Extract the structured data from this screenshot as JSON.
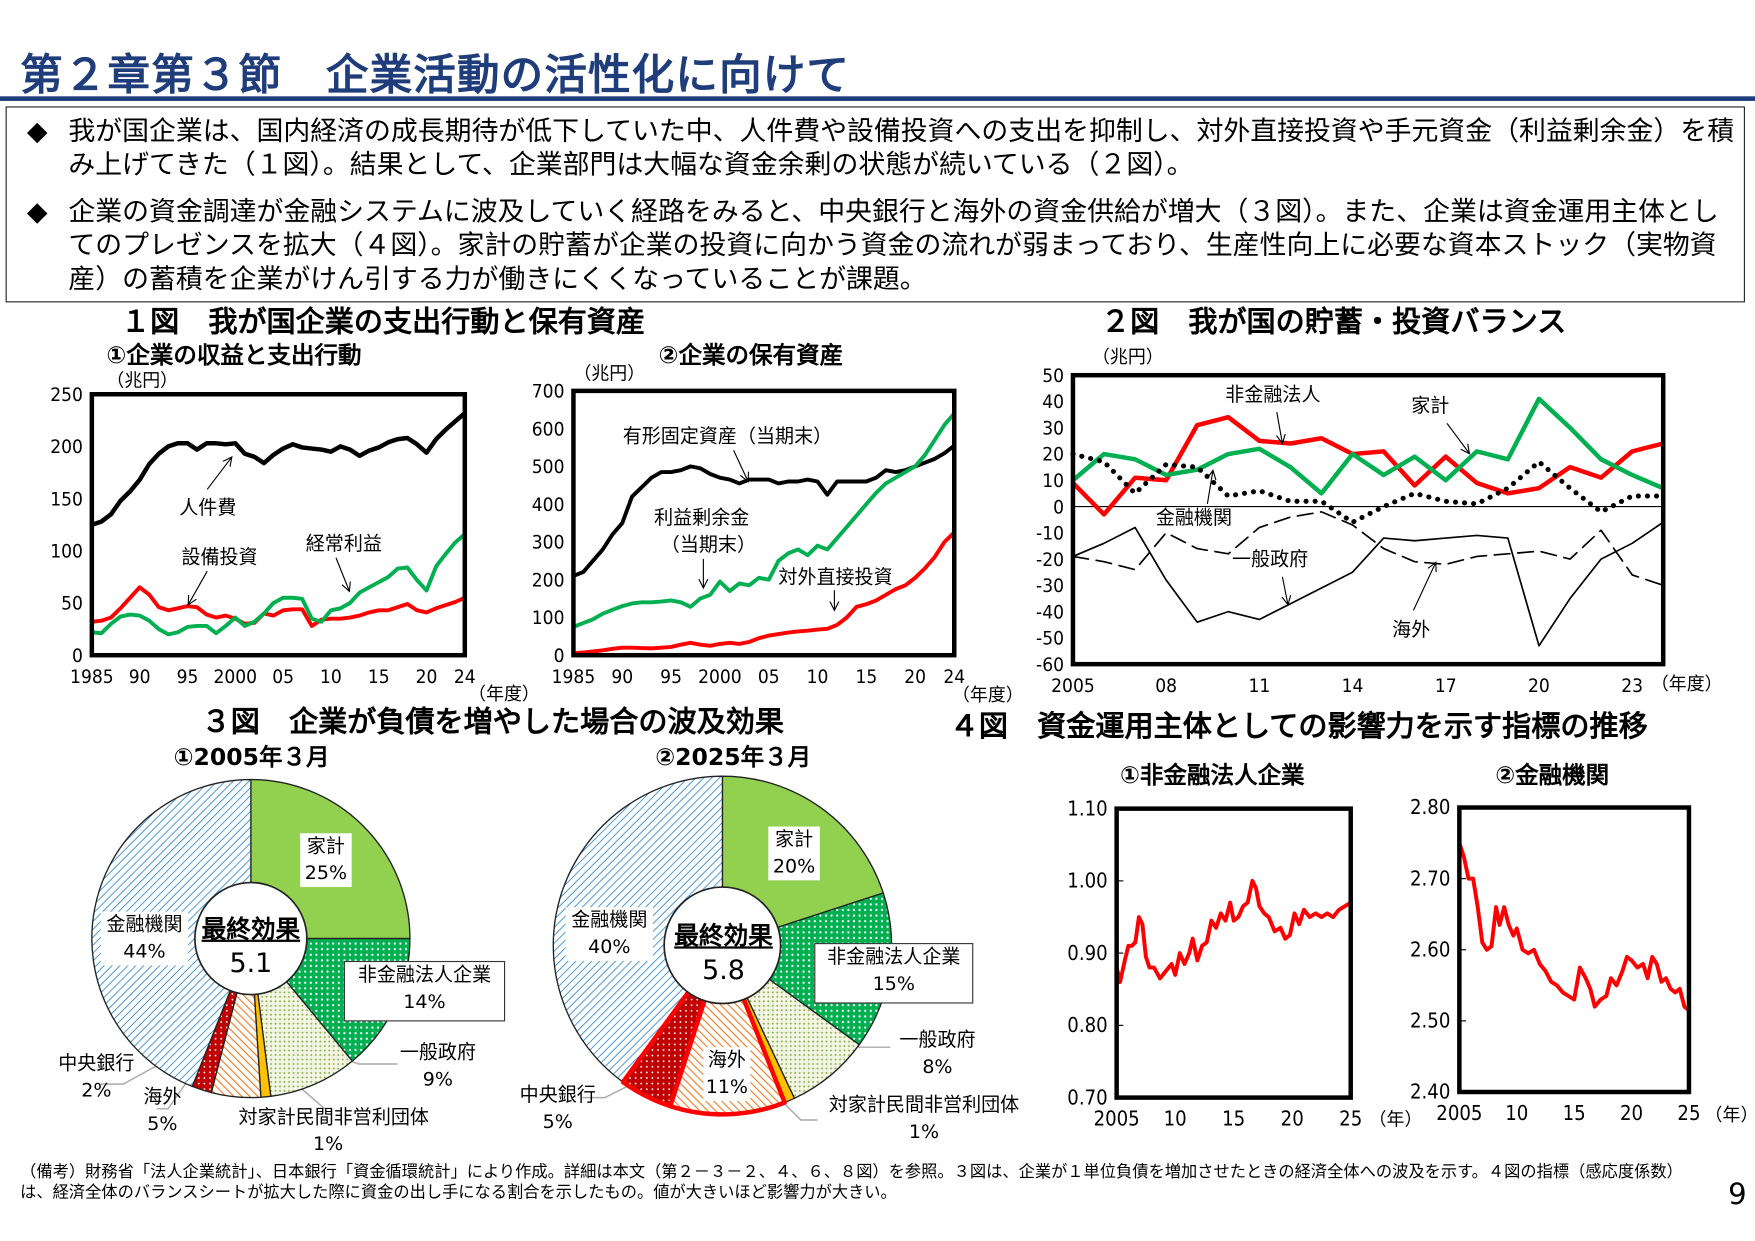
{
  "header": {
    "title": "第２章第３節　企業活動の活性化に向けて"
  },
  "summary": {
    "bullet_icon": "diamond-bullet-icon",
    "bullet_glyph": "◆",
    "bullets": [
      "我が国企業は、国内経済の成長期待が低下していた中、人件費や設備投資への支出を抑制し、対外直接投資や手元資金（利益剰余金）を積み上げてきた（１図）。結果として、企業部門は大幅な資金余剰の状態が続いている（２図）。",
      "企業の資金調達が金融システムに波及していく経路をみると、中央銀行と海外の資金供給が増大（３図）。また、企業は資金運用主体としてのプレゼンスを拡大（４図）。家計の貯蓄が企業の投資に向かう資金の流れが弱まっており、生産性向上に必要な資本ストック（実物資産）の蓄積を企業がけん引する力が働きにくくなっていることが課題。"
    ]
  },
  "fig1": {
    "title": "１図　我が国企業の支出行動と保有資産"
  },
  "fig2": {
    "title": "２図　我が国の貯蓄・投資バランス"
  },
  "fig3": {
    "title": "３図　企業が負債を増やした場合の波及効果"
  },
  "fig4": {
    "title": "４図　資金運用主体としての影響力を示す指標の推移"
  },
  "chart_data": [
    {
      "id": "fig1-1",
      "type": "line",
      "title": "①企業の収益と支出行動",
      "ylabel": "（兆円）",
      "xlabel": "（年度）",
      "ylim": [
        0,
        250
      ],
      "y_ticks": [
        0,
        50,
        100,
        150,
        200,
        250
      ],
      "y_tick_labels": [
        "0",
        "50",
        "100",
        "150",
        "200",
        "250"
      ],
      "xlim": [
        1985,
        2024
      ],
      "x_ticks": [
        1985,
        1990,
        1995,
        2000,
        2005,
        2010,
        2015,
        2020,
        2024
      ],
      "x_tick_labels": [
        "1985",
        "90",
        "95",
        "2000",
        "05",
        "10",
        "15",
        "20",
        "24"
      ],
      "x": [
        1985,
        1986,
        1987,
        1988,
        1989,
        1990,
        1991,
        1992,
        1993,
        1994,
        1995,
        1996,
        1997,
        1998,
        1999,
        2000,
        2001,
        2002,
        2003,
        2004,
        2005,
        2006,
        2007,
        2008,
        2009,
        2010,
        2011,
        2012,
        2013,
        2014,
        2015,
        2016,
        2017,
        2018,
        2019,
        2020,
        2021,
        2022,
        2023,
        2024
      ],
      "series": [
        {
          "name": "人件費",
          "color": "#000000",
          "values": [
            125,
            128,
            135,
            148,
            157,
            168,
            183,
            193,
            200,
            203,
            203,
            197,
            203,
            203,
            202,
            203,
            193,
            190,
            184,
            192,
            198,
            202,
            199,
            198,
            197,
            195,
            200,
            197,
            191,
            196,
            199,
            204,
            207,
            208,
            202,
            194,
            207,
            216,
            224,
            232
          ]
        },
        {
          "name": "設備投資",
          "color": "#ff0000",
          "values": [
            32,
            33,
            36,
            45,
            55,
            65,
            58,
            46,
            43,
            45,
            47,
            46,
            39,
            36,
            38,
            35,
            30,
            31,
            40,
            38,
            43,
            44,
            44,
            28,
            34,
            35,
            35,
            36,
            38,
            41,
            43,
            43,
            46,
            49,
            43,
            41,
            45,
            48,
            51,
            55
          ]
        },
        {
          "name": "経常利益",
          "color": "#00b050",
          "values": [
            22,
            21,
            30,
            37,
            39,
            38,
            33,
            25,
            20,
            22,
            27,
            28,
            28,
            21,
            28,
            36,
            28,
            32,
            40,
            50,
            55,
            55,
            54,
            35,
            32,
            43,
            45,
            50,
            60,
            65,
            70,
            75,
            83,
            84,
            72,
            62,
            85,
            97,
            108,
            116
          ]
        }
      ]
    },
    {
      "id": "fig1-2",
      "type": "line",
      "title": "②企業の保有資産",
      "ylabel": "（兆円）",
      "xlabel": "（年度）",
      "ylim": [
        0,
        700
      ],
      "y_ticks": [
        0,
        100,
        200,
        300,
        400,
        500,
        600,
        700
      ],
      "y_tick_labels": [
        "0",
        "100",
        "200",
        "300",
        "400",
        "500",
        "600",
        "700"
      ],
      "xlim": [
        1985,
        2024
      ],
      "x_ticks": [
        1985,
        1990,
        1995,
        2000,
        2005,
        2010,
        2015,
        2020,
        2024
      ],
      "x_tick_labels": [
        "1985",
        "90",
        "95",
        "2000",
        "05",
        "10",
        "15",
        "20",
        "24"
      ],
      "x": [
        1985,
        1986,
        1987,
        1988,
        1989,
        1990,
        1991,
        1992,
        1993,
        1994,
        1995,
        1996,
        1997,
        1998,
        1999,
        2000,
        2001,
        2002,
        2003,
        2004,
        2005,
        2006,
        2007,
        2008,
        2009,
        2010,
        2011,
        2012,
        2013,
        2014,
        2015,
        2016,
        2017,
        2018,
        2019,
        2020,
        2021,
        2022,
        2023,
        2024
      ],
      "series": [
        {
          "name": "有形固定資産（当期末）",
          "color": "#000000",
          "values": [
            210,
            220,
            250,
            280,
            320,
            350,
            420,
            445,
            470,
            485,
            485,
            490,
            500,
            495,
            480,
            470,
            465,
            455,
            465,
            465,
            465,
            455,
            460,
            460,
            465,
            460,
            425,
            460,
            460,
            460,
            460,
            470,
            490,
            485,
            490,
            500,
            510,
            520,
            535,
            555
          ]
        },
        {
          "name": "利益剰余金（当期末）",
          "color": "#00b050",
          "values": [
            75,
            85,
            95,
            110,
            120,
            130,
            137,
            140,
            140,
            142,
            145,
            140,
            128,
            150,
            160,
            195,
            170,
            190,
            185,
            205,
            200,
            250,
            270,
            280,
            265,
            290,
            280,
            310,
            340,
            370,
            400,
            430,
            455,
            470,
            485,
            500,
            530,
            570,
            610,
            640
          ]
        },
        {
          "name": "対外直接投資",
          "color": "#ff0000",
          "values": [
            5,
            7,
            10,
            13,
            17,
            20,
            20,
            19,
            18,
            20,
            22,
            28,
            33,
            28,
            25,
            30,
            33,
            30,
            35,
            45,
            52,
            56,
            60,
            63,
            65,
            68,
            70,
            80,
            100,
            128,
            135,
            145,
            160,
            175,
            185,
            205,
            230,
            260,
            300,
            325
          ]
        }
      ]
    },
    {
      "id": "fig2",
      "type": "line",
      "ylabel": "（兆円）",
      "xlabel": "（年度）",
      "ylim": [
        -60,
        50
      ],
      "y_ticks": [
        -60,
        -50,
        -40,
        -30,
        -20,
        -10,
        0,
        10,
        20,
        30,
        40,
        50
      ],
      "y_tick_labels": [
        "-60",
        "-50",
        "-40",
        "-30",
        "-20",
        "-10",
        "0",
        "10",
        "20",
        "30",
        "40",
        "50"
      ],
      "xlim": [
        2005,
        2024
      ],
      "x_ticks": [
        2005,
        2008,
        2011,
        2014,
        2017,
        2020,
        2023
      ],
      "x_tick_labels": [
        "2005",
        "08",
        "11",
        "14",
        "17",
        "20",
        "23"
      ],
      "x": [
        2005,
        2006,
        2007,
        2008,
        2009,
        2010,
        2011,
        2012,
        2013,
        2014,
        2015,
        2016,
        2017,
        2018,
        2019,
        2020,
        2021,
        2022,
        2023,
        2024
      ],
      "series": [
        {
          "name": "非金融法人",
          "color": "#ff0000",
          "style": "solid-thick",
          "values": [
            9,
            -3,
            11,
            10,
            31,
            34,
            25,
            24,
            26,
            20,
            21,
            8,
            19,
            9,
            5,
            7,
            15,
            11,
            21,
            24
          ]
        },
        {
          "name": "家計",
          "color": "#00b050",
          "style": "solid-thick",
          "values": [
            10,
            20,
            18,
            12,
            14,
            20,
            22,
            15,
            5,
            20,
            12,
            19,
            10,
            21,
            18,
            41,
            30,
            18,
            12,
            7
          ]
        },
        {
          "name": "金融機関",
          "color": "#000000",
          "style": "dotted",
          "values": [
            20,
            17,
            5,
            16,
            15,
            4,
            6,
            2,
            2,
            -6,
            0,
            5,
            2,
            1,
            7,
            17,
            7,
            -2,
            4,
            4
          ]
        },
        {
          "name": "一般政府",
          "color": "#000000",
          "style": "dashed",
          "values": [
            -19,
            -21,
            -24,
            -10,
            -16,
            -18,
            -8,
            -4,
            -2,
            -7,
            -16,
            -21,
            -22,
            -19,
            -18,
            -17,
            -20,
            -9,
            -26,
            -30
          ]
        },
        {
          "name": "海外",
          "color": "#000000",
          "style": "solid-thin",
          "values": [
            -19,
            -14,
            -8,
            -28,
            -44,
            -40,
            -43,
            -37,
            -31,
            -25,
            -12,
            -13,
            -12,
            -11,
            -12,
            -53,
            -35,
            -20,
            -14,
            -6
          ]
        }
      ]
    },
    {
      "id": "fig3-1",
      "type": "pie",
      "title": "①2005年３月",
      "center_label": "最終効果",
      "center_value": "5.1",
      "slices": [
        {
          "name": "家計",
          "value": 25,
          "label": "25%",
          "color": "#92d050",
          "pattern": "solid"
        },
        {
          "name": "非金融法人企業",
          "value": 14,
          "label": "14%",
          "color": "#00b050",
          "pattern": "dots"
        },
        {
          "name": "一般政府",
          "value": 9,
          "label": "9%",
          "color": "#c4d79b",
          "pattern": "fine-dots"
        },
        {
          "name": "対家計民間非営利団体",
          "value": 1,
          "label": "1%",
          "color": "#ffc000",
          "pattern": "solid"
        },
        {
          "name": "海外",
          "value": 5,
          "label": "5%",
          "color": "#f79646",
          "pattern": "hatch"
        },
        {
          "name": "中央銀行",
          "value": 2,
          "label": "2%",
          "color": "#c00000",
          "pattern": "dots"
        },
        {
          "name": "金融機関",
          "value": 44,
          "label": "44%",
          "color": "#0070c0",
          "pattern": "diagonal-lines"
        }
      ]
    },
    {
      "id": "fig3-2",
      "type": "pie",
      "title": "②2025年３月",
      "center_label": "最終効果",
      "center_value": "5.8",
      "slices": [
        {
          "name": "家計",
          "value": 20,
          "label": "20%",
          "color": "#92d050",
          "pattern": "solid"
        },
        {
          "name": "非金融法人企業",
          "value": 15,
          "label": "15%",
          "color": "#00b050",
          "pattern": "dots"
        },
        {
          "name": "一般政府",
          "value": 8,
          "label": "8%",
          "color": "#c4d79b",
          "pattern": "fine-dots"
        },
        {
          "name": "対家計民間非営利団体",
          "value": 1,
          "label": "1%",
          "color": "#ffc000",
          "pattern": "solid"
        },
        {
          "name": "海外",
          "value": 11,
          "label": "11%",
          "color": "#f79646",
          "pattern": "hatch",
          "highlighted": true
        },
        {
          "name": "中央銀行",
          "value": 5,
          "label": "5%",
          "color": "#c00000",
          "pattern": "dots",
          "highlighted": true
        },
        {
          "name": "金融機関",
          "value": 40,
          "label": "40%",
          "color": "#0070c0",
          "pattern": "diagonal-lines"
        }
      ]
    },
    {
      "id": "fig4-1",
      "type": "line",
      "title": "①非金融法人企業",
      "xlabel": "（年）",
      "ylim": [
        0.7,
        1.1
      ],
      "y_ticks": [
        0.7,
        0.8,
        0.9,
        1.0,
        1.1
      ],
      "y_tick_labels": [
        "0.70",
        "0.80",
        "0.90",
        "1.00",
        "1.10"
      ],
      "xlim": [
        2005,
        2025
      ],
      "x_ticks": [
        2005,
        2010,
        2015,
        2020,
        2025
      ],
      "x_tick_labels": [
        "2005",
        "10",
        "15",
        "20",
        "25"
      ],
      "x": [
        2005,
        2005.3,
        2005.7,
        2006,
        2006.3,
        2006.6,
        2006.9,
        2007.2,
        2007.5,
        2007.8,
        2008.2,
        2008.7,
        2009.2,
        2009.7,
        2010,
        2010.4,
        2010.8,
        2011.2,
        2011.5,
        2011.9,
        2012.3,
        2012.7,
        2013.1,
        2013.5,
        2013.9,
        2014.3,
        2014.7,
        2015,
        2015.4,
        2015.8,
        2016.2,
        2016.6,
        2016.9,
        2017.2,
        2017.6,
        2018,
        2018.5,
        2019,
        2019.4,
        2019.8,
        2020.2,
        2020.6,
        2021,
        2021.5,
        2022,
        2022.5,
        2023,
        2023.5,
        2024,
        2024.5,
        2025
      ],
      "series": [
        {
          "name": "①非金融法人企業",
          "color": "#ff0000",
          "values": [
            0.88,
            0.86,
            0.89,
            0.91,
            0.91,
            0.915,
            0.95,
            0.94,
            0.895,
            0.88,
            0.88,
            0.865,
            0.875,
            0.885,
            0.87,
            0.9,
            0.885,
            0.9,
            0.92,
            0.89,
            0.91,
            0.915,
            0.945,
            0.935,
            0.955,
            0.945,
            0.97,
            0.945,
            0.95,
            0.965,
            0.97,
            1.0,
            0.99,
            0.965,
            0.955,
            0.95,
            0.93,
            0.935,
            0.92,
            0.925,
            0.955,
            0.94,
            0.96,
            0.95,
            0.955,
            0.95,
            0.955,
            0.95,
            0.96,
            0.965,
            0.97
          ]
        }
      ]
    },
    {
      "id": "fig4-2",
      "type": "line",
      "title": "②金融機関",
      "xlabel": "（年）",
      "ylim": [
        2.4,
        2.8
      ],
      "y_ticks": [
        2.4,
        2.5,
        2.6,
        2.7,
        2.8
      ],
      "y_tick_labels": [
        "2.40",
        "2.50",
        "2.60",
        "2.70",
        "2.80"
      ],
      "xlim": [
        2005,
        2025
      ],
      "x_ticks": [
        2005,
        2010,
        2015,
        2020,
        2025
      ],
      "x_tick_labels": [
        "2005",
        "10",
        "15",
        "20",
        "25"
      ],
      "x": [
        2005,
        2005.4,
        2005.8,
        2006.2,
        2006.6,
        2007,
        2007.4,
        2007.8,
        2008.2,
        2008.5,
        2008.9,
        2009.3,
        2009.7,
        2010,
        2010.5,
        2011,
        2011.5,
        2012,
        2012.5,
        2013,
        2013.5,
        2014,
        2014.5,
        2015,
        2015.5,
        2016,
        2016.4,
        2016.8,
        2017.3,
        2017.8,
        2018.2,
        2018.7,
        2019.2,
        2019.6,
        2020,
        2020.5,
        2021,
        2021.4,
        2021.8,
        2022.2,
        2022.6,
        2023,
        2023.4,
        2023.8,
        2024.2,
        2024.6,
        2025
      ],
      "series": [
        {
          "name": "②金融機関",
          "color": "#ff0000",
          "values": [
            2.75,
            2.73,
            2.7,
            2.7,
            2.66,
            2.61,
            2.6,
            2.605,
            2.66,
            2.635,
            2.66,
            2.635,
            2.62,
            2.63,
            2.6,
            2.595,
            2.6,
            2.58,
            2.57,
            2.555,
            2.55,
            2.54,
            2.535,
            2.53,
            2.575,
            2.56,
            2.545,
            2.52,
            2.53,
            2.535,
            2.56,
            2.55,
            2.57,
            2.59,
            2.585,
            2.575,
            2.58,
            2.56,
            2.59,
            2.58,
            2.555,
            2.56,
            2.545,
            2.54,
            2.545,
            2.52,
            2.515
          ]
        }
      ]
    }
  ],
  "annotations": {
    "fig1_1": [
      "人件費",
      "設備投資",
      "経常利益"
    ],
    "fig1_2": [
      "有形固定資産（当期末）",
      "利益剰余金",
      "（当期末）",
      "対外直接投資"
    ],
    "fig2": [
      "非金融法人",
      "家計",
      "金融機関",
      "一般政府",
      "海外"
    ]
  },
  "footnote": "（備考）財務省「法人企業統計」、日本銀行「資金循環統計」により作成。詳細は本文（第２－３－２、４、６、８図）を参照。３図は、企業が１単位負債を増加させたときの経済全体への波及を示す。４図の指標（感応度係数）は、経済全体のバランスシートが拡大した際に資金の出し手になる割合を示したもの。値が大きいほど影響力が大きい。",
  "page_number": "9"
}
